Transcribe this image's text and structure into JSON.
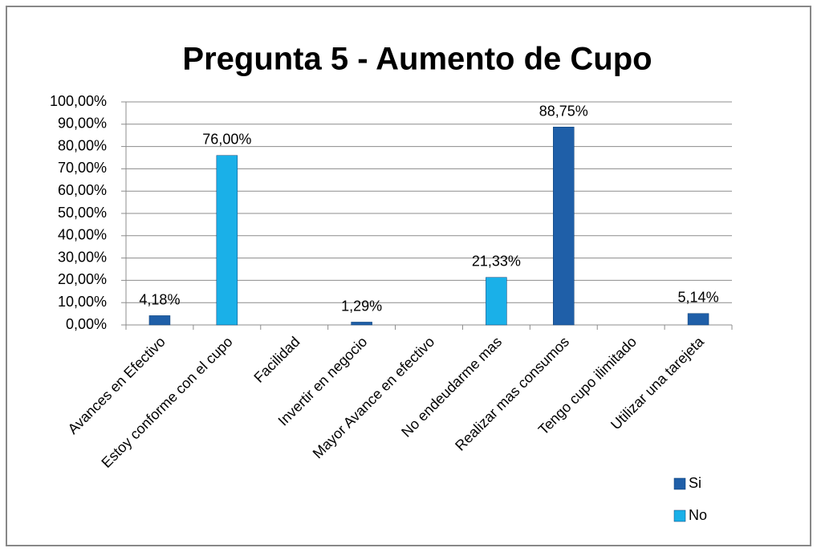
{
  "chart_data": {
    "type": "bar",
    "title": "Pregunta 5 - Aumento de Cupo",
    "categories": [
      "Avances en Efectivo",
      "Estoy conforme con el cupo",
      "Facilidad",
      "Invertir en negocio",
      "Mayor Avance en efectivo",
      "No endeudarme mas",
      "Realizar mas consumos",
      "Tengo cupo ilimitado",
      "Utilizar una tarejeta"
    ],
    "series": [
      {
        "name": "Si",
        "color": "#1f5fa8",
        "values": [
          4.18,
          null,
          null,
          1.29,
          null,
          null,
          88.75,
          null,
          5.14
        ],
        "value_labels": [
          "4,18%",
          null,
          null,
          "1,29%",
          null,
          null,
          "88,75%",
          null,
          "5,14%"
        ]
      },
      {
        "name": "No",
        "color": "#1ab0e8",
        "values": [
          null,
          76.0,
          null,
          null,
          null,
          21.33,
          null,
          null,
          null
        ],
        "value_labels": [
          null,
          "76,00%",
          null,
          null,
          null,
          "21,33%",
          null,
          null,
          null
        ]
      }
    ],
    "ylim": [
      0,
      100
    ],
    "yticks": [
      {
        "value": 0,
        "label": "0,00%"
      },
      {
        "value": 10,
        "label": "10,00%"
      },
      {
        "value": 20,
        "label": "20,00%"
      },
      {
        "value": 30,
        "label": "30,00%"
      },
      {
        "value": 40,
        "label": "40,00%"
      },
      {
        "value": 50,
        "label": "50,00%"
      },
      {
        "value": 60,
        "label": "60,00%"
      },
      {
        "value": 70,
        "label": "70,00%"
      },
      {
        "value": 80,
        "label": "80,00%"
      },
      {
        "value": 90,
        "label": "90,00%"
      },
      {
        "value": 100,
        "label": "100,00%"
      }
    ],
    "grid": true,
    "legend": "bottom-right"
  }
}
